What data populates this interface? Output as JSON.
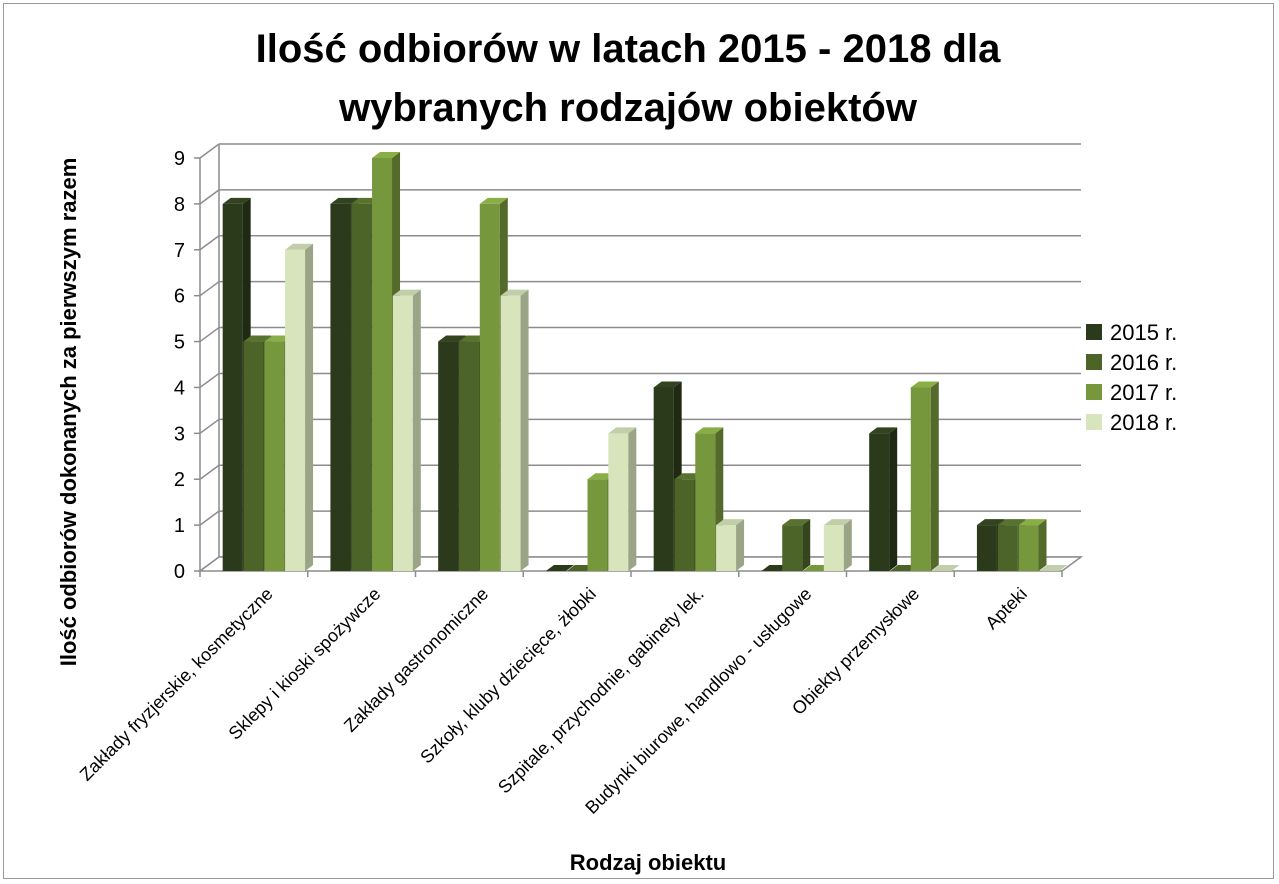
{
  "chart_data": {
    "type": "bar",
    "title_line1": "Ilość odbiorów w latach 2015 - 2018 dla",
    "title_line2": "wybranych rodzajów obiektów",
    "xlabel": "Rodzaj obiektu",
    "ylabel": "Ilość odbiorów dokonanych za pierwszym razem",
    "ylim": [
      0,
      9
    ],
    "yticks": [
      "0",
      "1",
      "2",
      "3",
      "4",
      "5",
      "6",
      "7",
      "8",
      "9"
    ],
    "grid": true,
    "legend_position": "right",
    "categories": [
      "Zakłady fryzjerskie, kosmetyczne",
      "Sklepy i kioski spożywcze",
      "Zakłady gastronomiczne",
      "Szkoły, kluby dziecięce, żłobki",
      "Szpitale, przychodnie, gabinety lek.",
      "Budynki biurowe, handlowo - usługowe",
      "Obiekty przemysłowe",
      "Apteki"
    ],
    "series": [
      {
        "name": "2015 r.",
        "color": "#2c3a1c",
        "values": [
          8,
          8,
          5,
          0,
          4,
          0,
          3,
          1
        ]
      },
      {
        "name": "2016 r.",
        "color": "#4c6428",
        "values": [
          5,
          8,
          5,
          0,
          2,
          1,
          0,
          1
        ]
      },
      {
        "name": "2017 r.",
        "color": "#77973d",
        "values": [
          5,
          9,
          8,
          2,
          3,
          0,
          4,
          1
        ]
      },
      {
        "name": "2018 r.",
        "color": "#d7e4bc",
        "values": [
          7,
          6,
          6,
          3,
          1,
          1,
          0,
          0
        ]
      }
    ]
  }
}
